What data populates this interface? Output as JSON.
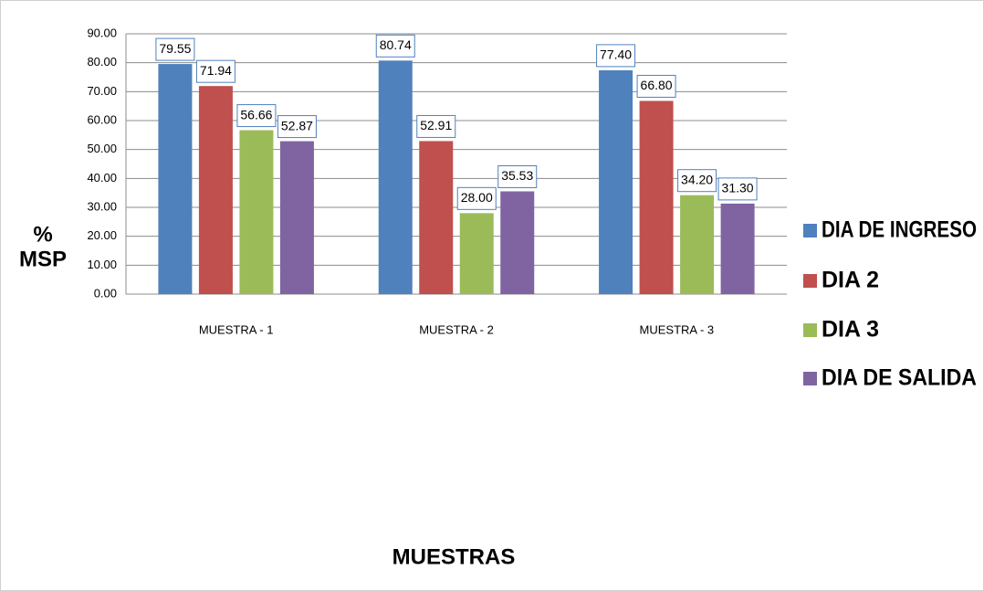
{
  "chart_data": {
    "type": "bar",
    "categories": [
      "MUESTRA - 1",
      "MUESTRA - 2",
      "MUESTRA - 3"
    ],
    "series": [
      {
        "name": "DIA DE INGRESO",
        "color": "#4f81bd",
        "values": [
          79.55,
          80.74,
          77.4
        ],
        "value_labels": [
          "79.55",
          "80.74",
          "77.40"
        ]
      },
      {
        "name": "DIA 2",
        "color": "#c0504d",
        "values": [
          71.94,
          52.91,
          66.8
        ],
        "value_labels": [
          "71.94",
          "52.91",
          "66.80"
        ]
      },
      {
        "name": "DIA 3",
        "color": "#9bbb59",
        "values": [
          56.66,
          28.0,
          34.2
        ],
        "value_labels": [
          "56.66",
          "28.00",
          "34.20"
        ]
      },
      {
        "name": "DIA DE SALIDA",
        "color": "#8064a2",
        "values": [
          52.87,
          35.53,
          31.3
        ],
        "value_labels": [
          "52.87",
          "35.53",
          "31.30"
        ]
      }
    ],
    "ylabel": [
      "%",
      "MSP"
    ],
    "xlabel": "MUESTRAS",
    "ylim": [
      0,
      90
    ],
    "yticks": [
      {
        "value": 0,
        "label": "0.00"
      },
      {
        "value": 10,
        "label": "10.00"
      },
      {
        "value": 20,
        "label": "20.00"
      },
      {
        "value": 30,
        "label": "30.00"
      },
      {
        "value": 40,
        "label": "40.00"
      },
      {
        "value": 50,
        "label": "50.00"
      },
      {
        "value": 60,
        "label": "60.00"
      },
      {
        "value": 70,
        "label": "70.00"
      },
      {
        "value": 80,
        "label": "80.00"
      },
      {
        "value": 90,
        "label": "90.00"
      }
    ],
    "grid": true,
    "legend": "right"
  }
}
